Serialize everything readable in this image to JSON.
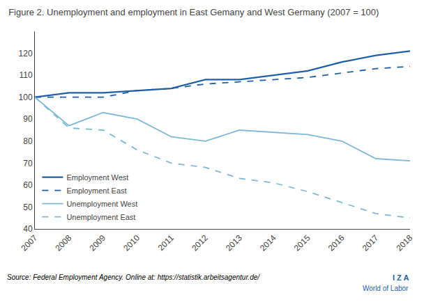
{
  "chart_data": {
    "type": "line",
    "title": "Figure 2. Unemployment and employment in East Gemany and West Germany (2007 = 100)",
    "x": [
      2007,
      2008,
      2009,
      2010,
      2011,
      2012,
      2013,
      2014,
      2015,
      2016,
      2017,
      2018
    ],
    "series": [
      {
        "name": "Employment West",
        "color": "#1f5fa6",
        "line_style": "solid",
        "values": [
          100,
          102,
          102,
          103,
          104,
          108,
          108,
          110,
          112,
          116,
          119,
          121
        ]
      },
      {
        "name": "Employment East",
        "color": "#1f5fa6",
        "line_style": "dash",
        "values": [
          100,
          100,
          100,
          103,
          104,
          106,
          107,
          108,
          109,
          111,
          113,
          114
        ]
      },
      {
        "name": "Unemployment West",
        "color": "#7db8d8",
        "line_style": "solid",
        "values": [
          100,
          87,
          93,
          90,
          82,
          80,
          85,
          84,
          83,
          80,
          72,
          71
        ]
      },
      {
        "name": "Unemployment East",
        "color": "#7db8d8",
        "line_style": "dash",
        "values": [
          100,
          86,
          85,
          76,
          70,
          68,
          63,
          61,
          57,
          52,
          47,
          45
        ]
      }
    ],
    "xlim": [
      2007,
      2018
    ],
    "xticks": [
      2007,
      2008,
      2009,
      2010,
      2011,
      2012,
      2013,
      2014,
      2015,
      2016,
      2017,
      2018
    ],
    "ylim": [
      40,
      130
    ],
    "yticks": [
      40,
      50,
      60,
      70,
      80,
      90,
      100,
      110,
      120
    ],
    "grid": false,
    "legend": "lower left",
    "annotations": [
      "Source: Federal Employment Agency. Online at: https://statistik.arbeitsagentur.de/",
      "I Z A",
      "World of Labor"
    ]
  }
}
